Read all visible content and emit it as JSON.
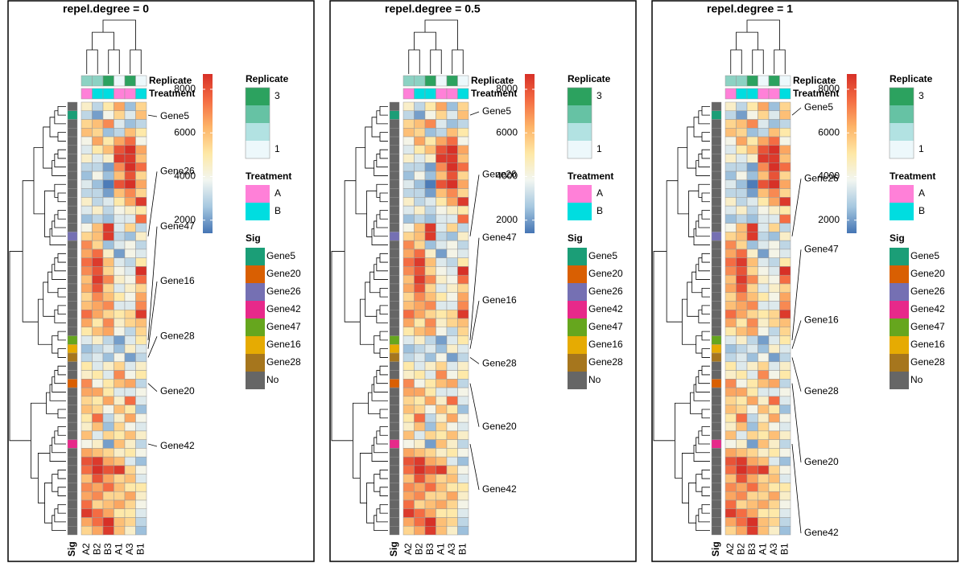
{
  "chart_data": {
    "type": "heatmap",
    "panels": [
      {
        "title": "repel.degree = 0"
      },
      {
        "title": "repel.degree = 0.5"
      },
      {
        "title": "repel.degree = 1"
      }
    ],
    "columns": [
      "A2",
      "B2",
      "B3",
      "A1",
      "A3",
      "B1"
    ],
    "matrix": [
      [
        4500,
        3000,
        5000,
        6500,
        2500,
        5500
      ],
      [
        3000,
        2000,
        4000,
        5500,
        3500,
        6000
      ],
      [
        5500,
        6000,
        7000,
        3500,
        2500,
        3000
      ],
      [
        6000,
        5500,
        2500,
        3000,
        6000,
        5000
      ],
      [
        4000,
        6500,
        5000,
        6500,
        7500,
        4000
      ],
      [
        3500,
        5000,
        6000,
        8000,
        9000,
        6500
      ],
      [
        4500,
        3500,
        4500,
        8500,
        8500,
        6000
      ],
      [
        3000,
        3000,
        2000,
        7000,
        9000,
        7500
      ],
      [
        2500,
        4000,
        2500,
        6000,
        8000,
        5500
      ],
      [
        3500,
        2500,
        1500,
        8000,
        9500,
        6500
      ],
      [
        3000,
        3000,
        2000,
        6000,
        7000,
        5500
      ],
      [
        4500,
        3000,
        3500,
        5000,
        6500,
        8500
      ],
      [
        3500,
        4500,
        3000,
        4000,
        4500,
        5000
      ],
      [
        2500,
        3000,
        2500,
        3500,
        3500,
        7500
      ],
      [
        4000,
        6000,
        8500,
        3500,
        5500,
        3000
      ],
      [
        5500,
        6000,
        8500,
        3000,
        2500,
        4500
      ],
      [
        7000,
        5500,
        2500,
        3500,
        4000,
        3000
      ],
      [
        6500,
        7500,
        4500,
        2000,
        4000,
        3500
      ],
      [
        7500,
        8500,
        6000,
        3500,
        3000,
        5000
      ],
      [
        7000,
        8000,
        5500,
        4000,
        3500,
        9000
      ],
      [
        6000,
        8500,
        7000,
        4500,
        4000,
        7500
      ],
      [
        6500,
        8000,
        5500,
        3500,
        4500,
        5500
      ],
      [
        5500,
        7000,
        6000,
        5000,
        4000,
        6500
      ],
      [
        6000,
        6500,
        7000,
        3500,
        3500,
        7000
      ],
      [
        7500,
        6500,
        5500,
        5000,
        5500,
        8500
      ],
      [
        6500,
        5000,
        7000,
        4500,
        5500,
        6000
      ],
      [
        5000,
        6000,
        6500,
        4000,
        3000,
        5500
      ],
      [
        3500,
        4500,
        3000,
        2000,
        3500,
        5000
      ],
      [
        2500,
        3000,
        3500,
        2500,
        4500,
        3500
      ],
      [
        3000,
        3500,
        2500,
        4000,
        2000,
        3000
      ],
      [
        5000,
        3500,
        4500,
        5500,
        3500,
        4500
      ],
      [
        4500,
        5000,
        3500,
        7000,
        4000,
        5000
      ],
      [
        7000,
        4000,
        5000,
        6000,
        6500,
        3000
      ],
      [
        6500,
        6500,
        5000,
        3500,
        3500,
        4000
      ],
      [
        5500,
        5000,
        6500,
        4500,
        7500,
        3500
      ],
      [
        6000,
        5500,
        4000,
        6000,
        5000,
        2500
      ],
      [
        5000,
        7500,
        3000,
        4500,
        6500,
        4000
      ],
      [
        4500,
        6000,
        2500,
        5500,
        4000,
        3500
      ],
      [
        6000,
        3500,
        5500,
        5000,
        6000,
        4500
      ],
      [
        4000,
        4500,
        2000,
        6000,
        4500,
        3000
      ],
      [
        6500,
        6000,
        5500,
        4500,
        5000,
        4000
      ],
      [
        8000,
        8500,
        6500,
        6000,
        3500,
        2500
      ],
      [
        7500,
        9000,
        8000,
        8500,
        5500,
        4000
      ],
      [
        6000,
        8000,
        6500,
        5500,
        6000,
        3500
      ],
      [
        7000,
        6500,
        7500,
        6000,
        5000,
        5000
      ],
      [
        6500,
        7000,
        5500,
        5500,
        6500,
        4500
      ],
      [
        7500,
        5500,
        6000,
        6500,
        5500,
        4000
      ],
      [
        8500,
        7500,
        6500,
        5000,
        5000,
        3500
      ],
      [
        6500,
        7500,
        9000,
        6000,
        5500,
        3000
      ],
      [
        5500,
        6500,
        8500,
        6000,
        4500,
        2500
      ]
    ],
    "row_labels": [
      null,
      "Gene5",
      null,
      null,
      null,
      null,
      null,
      null,
      null,
      null,
      null,
      null,
      null,
      null,
      null,
      "Gene26",
      null,
      null,
      null,
      null,
      null,
      null,
      null,
      null,
      null,
      null,
      null,
      "Gene47",
      "Gene16",
      "Gene28",
      null,
      null,
      "Gene20",
      null,
      null,
      null,
      null,
      null,
      null,
      "Gene42",
      null,
      null,
      null,
      null,
      null,
      null,
      null,
      null,
      null,
      null
    ],
    "colorbar": {
      "lim": [
        1400,
        8700
      ],
      "ticks": [
        2000,
        4000,
        6000,
        8000
      ],
      "colors": [
        "#4575b4",
        "#a6c8e0",
        "#f2f6f1",
        "#fee8a6",
        "#fdb468",
        "#f46d43",
        "#d73027"
      ]
    },
    "annotations": [
      {
        "name": "Replicate",
        "values": [
          2,
          2,
          3,
          1,
          3,
          1
        ]
      },
      {
        "name": "Treatment",
        "values": [
          "A",
          "B",
          "B",
          "A",
          "A",
          "B"
        ]
      }
    ],
    "replicate_legend": {
      "title": "Replicate",
      "lim": [
        1,
        3
      ],
      "ticks": [
        3,
        1
      ],
      "colors": [
        "#edf8fb",
        "#b2e2e2",
        "#66c2a4",
        "#2ca25f"
      ]
    },
    "treatment_legend": {
      "title": "Treatment",
      "levels": [
        "A",
        "B"
      ],
      "colors": [
        "#ff80d8",
        "#00dde0"
      ]
    },
    "sig_legend": {
      "title": "Sig",
      "levels": [
        "Gene5",
        "Gene20",
        "Gene26",
        "Gene42",
        "Gene47",
        "Gene16",
        "Gene28",
        "No"
      ],
      "colors": [
        "#1b9e77",
        "#d95f02",
        "#7570b3",
        "#e7298a",
        "#66a61e",
        "#e6ab02",
        "#a6761d",
        "#666666"
      ]
    },
    "sig_label": "Sig"
  }
}
